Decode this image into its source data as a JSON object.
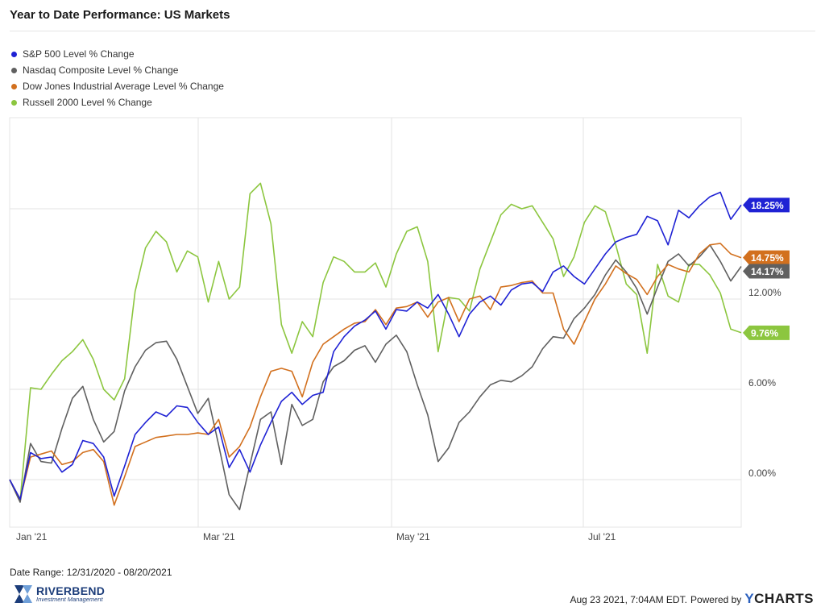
{
  "title": "Year to Date Performance: US Markets",
  "legend": [
    {
      "label": "S&P 500 Level % Change",
      "color": "#1f22d4"
    },
    {
      "label": "Nasdaq Composite Level % Change",
      "color": "#606060"
    },
    {
      "label": "Dow Jones Industrial Average Level % Change",
      "color": "#d2701e"
    },
    {
      "label": "Russell 2000 Level % Change",
      "color": "#8cc63f"
    }
  ],
  "footer": {
    "date_range": "Date Range: 12/31/2020 - 08/20/2021",
    "timestamp": "Aug 23 2021, 7:04AM EDT.",
    "powered_by": "Powered by",
    "brand_y": "Y",
    "brand_rest": "CHARTS",
    "logo_name": "RIVERBEND",
    "logo_sub": "Investment Management"
  },
  "chart_data": {
    "type": "line",
    "x_tick_labels": [
      "Jan '21",
      "Mar '21",
      "May '21",
      "Jul '21"
    ],
    "y_tick_labels": [
      "0.00%",
      "6.00%",
      "12.00%"
    ],
    "ylim": [
      -3,
      24
    ],
    "grid": true,
    "legend_position": "top-left",
    "end_labels": [
      "18.25%",
      "14.75%",
      "14.17%",
      "9.76%"
    ],
    "series": [
      {
        "name": "S&P 500 Level % Change",
        "color": "#1f22d4",
        "end_label": "18.25%",
        "end_y": 18.25,
        "values": [
          0.0,
          -1.3,
          1.8,
          1.4,
          1.5,
          0.5,
          1.0,
          2.6,
          2.4,
          1.5,
          -1.1,
          0.9,
          3.0,
          3.8,
          4.5,
          4.2,
          4.9,
          4.8,
          3.8,
          3.0,
          3.5,
          0.8,
          2.0,
          0.5,
          2.3,
          3.8,
          5.2,
          5.8,
          5.0,
          5.6,
          5.8,
          8.5,
          9.5,
          10.2,
          10.6,
          11.2,
          10.0,
          11.3,
          11.2,
          11.8,
          11.4,
          12.3,
          11.0,
          9.5,
          11.0,
          11.8,
          12.2,
          11.6,
          12.6,
          13.0,
          13.1,
          12.5,
          13.8,
          14.2,
          13.5,
          13.0,
          14.0,
          15.0,
          15.8,
          16.1,
          16.3,
          17.5,
          17.2,
          15.6,
          17.9,
          17.4,
          18.2,
          18.8,
          19.1,
          17.3,
          18.25
        ]
      },
      {
        "name": "Nasdaq Composite Level % Change",
        "color": "#606060",
        "end_label": "14.17%",
        "end_y": 14.17,
        "values": [
          0.0,
          -1.5,
          2.4,
          1.2,
          1.1,
          3.4,
          5.4,
          6.2,
          4.0,
          2.5,
          3.2,
          5.9,
          7.5,
          8.6,
          9.1,
          9.2,
          8.0,
          6.2,
          4.4,
          5.4,
          2.3,
          -1.0,
          -2.0,
          1.0,
          4.0,
          4.5,
          1.0,
          5.0,
          3.6,
          4.0,
          6.5,
          7.5,
          7.9,
          8.6,
          8.9,
          7.8,
          9.0,
          9.6,
          8.5,
          6.3,
          4.3,
          1.2,
          2.1,
          3.8,
          4.5,
          5.5,
          6.3,
          6.6,
          6.5,
          6.9,
          7.5,
          8.7,
          9.5,
          9.4,
          10.7,
          11.4,
          12.3,
          13.6,
          14.6,
          13.8,
          12.7,
          11.0,
          12.8,
          14.5,
          15.0,
          14.2,
          14.8,
          15.6,
          14.5,
          13.2,
          14.17
        ]
      },
      {
        "name": "Dow Jones Industrial Average Level % Change",
        "color": "#d2701e",
        "end_label": "14.75%",
        "end_y": 14.75,
        "values": [
          0.0,
          -1.3,
          1.5,
          1.7,
          1.9,
          1.0,
          1.2,
          1.8,
          2.0,
          1.2,
          -1.7,
          0.2,
          2.2,
          2.5,
          2.8,
          2.9,
          3.0,
          3.0,
          3.1,
          3.0,
          4.0,
          1.5,
          2.2,
          3.5,
          5.5,
          7.2,
          7.4,
          7.2,
          5.5,
          7.8,
          9.0,
          9.5,
          10.0,
          10.4,
          10.5,
          11.3,
          10.3,
          11.4,
          11.5,
          11.8,
          10.8,
          11.8,
          12.1,
          10.5,
          12.0,
          12.2,
          11.3,
          12.8,
          12.9,
          13.1,
          13.2,
          12.4,
          12.4,
          10.0,
          9.0,
          10.5,
          12.0,
          13.0,
          14.2,
          13.7,
          13.3,
          12.3,
          13.5,
          14.3,
          14.0,
          13.8,
          15.0,
          15.6,
          15.7,
          15.0,
          14.75
        ]
      },
      {
        "name": "Russell 2000 Level % Change",
        "color": "#8cc63f",
        "end_label": "9.76%",
        "end_y": 9.76,
        "values": [
          0.0,
          -1.4,
          6.1,
          6.0,
          7.0,
          7.9,
          8.5,
          9.3,
          8.0,
          6.0,
          5.3,
          6.7,
          12.5,
          15.4,
          16.5,
          15.8,
          13.8,
          15.2,
          14.8,
          11.8,
          14.5,
          12.0,
          12.8,
          19.0,
          19.7,
          17.0,
          10.3,
          8.4,
          10.5,
          9.5,
          13.1,
          14.8,
          14.5,
          13.8,
          13.8,
          14.4,
          12.8,
          15.0,
          16.5,
          16.8,
          14.5,
          8.5,
          12.1,
          12.0,
          11.2,
          14.0,
          15.8,
          17.6,
          18.3,
          18.0,
          18.2,
          17.1,
          16.0,
          13.5,
          14.8,
          17.1,
          18.2,
          17.8,
          15.6,
          13.0,
          12.3,
          8.4,
          14.3,
          12.2,
          11.8,
          14.3,
          14.3,
          13.6,
          12.4,
          10.0,
          9.76
        ]
      }
    ]
  }
}
